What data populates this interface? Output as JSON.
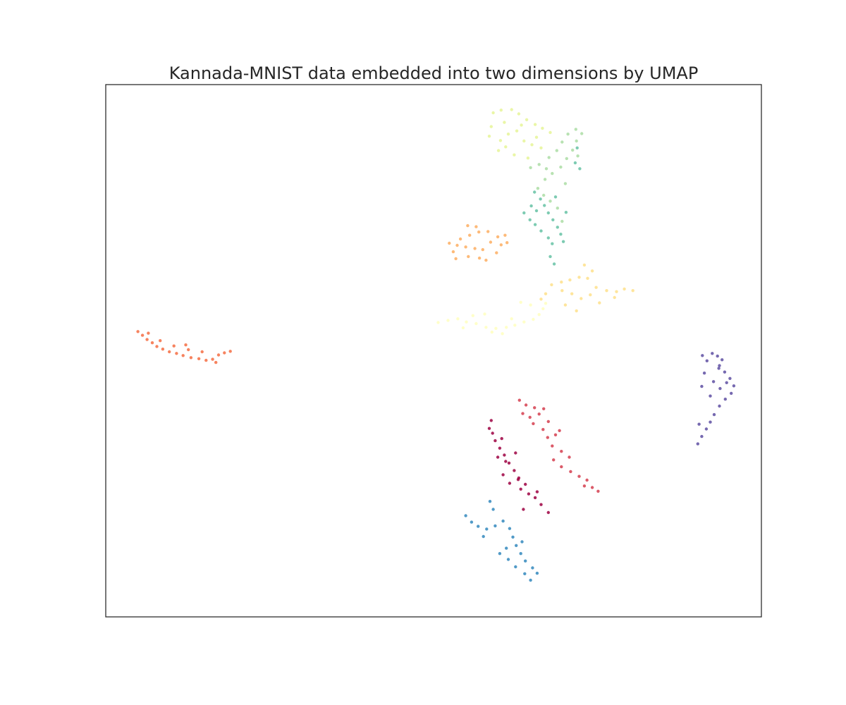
{
  "chart_data": {
    "type": "scatter",
    "title": "Kannada-MNIST data embedded into two dimensions by UMAP",
    "xlabel": "",
    "ylabel": "",
    "xlim": [
      0,
      100
    ],
    "ylim": [
      0,
      100
    ],
    "axis_ticks": false,
    "grid": false,
    "legend": "none",
    "colormap": "Spectral",
    "series": [
      {
        "color": "#9e0142",
        "points": [
          [
            58.5,
            35.4
          ],
          [
            59.0,
            34.5
          ],
          [
            59.4,
            33.1
          ],
          [
            60.1,
            31.7
          ],
          [
            60.8,
            30.4
          ],
          [
            61.5,
            28.9
          ],
          [
            62.3,
            27.5
          ],
          [
            63.0,
            26.1
          ],
          [
            60.6,
            26.7
          ],
          [
            61.6,
            25.1
          ],
          [
            63.3,
            24.0
          ],
          [
            64.5,
            23.1
          ],
          [
            65.5,
            22.4
          ],
          [
            66.4,
            21.1
          ],
          [
            67.5,
            19.6
          ],
          [
            59.8,
            30.0
          ],
          [
            61.0,
            29.2
          ],
          [
            62.5,
            30.8
          ],
          [
            58.8,
            36.9
          ],
          [
            60.4,
            33.5
          ],
          [
            62.9,
            25.8
          ],
          [
            64.0,
            24.9
          ],
          [
            65.8,
            23.5
          ],
          [
            63.7,
            20.2
          ]
        ]
      },
      {
        "color": "#d53e4f",
        "points": [
          [
            63.1,
            40.7
          ],
          [
            64.1,
            39.8
          ],
          [
            65.4,
            39.3
          ],
          [
            66.1,
            38.1
          ],
          [
            64.7,
            37.5
          ],
          [
            65.2,
            36.3
          ],
          [
            66.7,
            35.2
          ],
          [
            67.4,
            33.7
          ],
          [
            68.1,
            32.1
          ],
          [
            69.5,
            31.1
          ],
          [
            68.3,
            29.5
          ],
          [
            69.5,
            28.2
          ],
          [
            70.9,
            27.3
          ],
          [
            72.2,
            26.4
          ],
          [
            73.4,
            25.7
          ],
          [
            74.2,
            24.3
          ],
          [
            75.1,
            23.6
          ],
          [
            73.0,
            24.6
          ],
          [
            70.7,
            30.0
          ],
          [
            67.5,
            36.7
          ],
          [
            68.6,
            34.2
          ],
          [
            63.6,
            38.2
          ],
          [
            66.8,
            39.1
          ],
          [
            69.2,
            35.0
          ]
        ]
      },
      {
        "color": "#f46d43",
        "points": [
          [
            4.9,
            53.6
          ],
          [
            5.6,
            52.9
          ],
          [
            6.3,
            52.1
          ],
          [
            7.1,
            51.5
          ],
          [
            7.8,
            50.8
          ],
          [
            8.7,
            50.3
          ],
          [
            9.7,
            49.8
          ],
          [
            10.8,
            49.5
          ],
          [
            11.8,
            49.1
          ],
          [
            13.0,
            48.7
          ],
          [
            14.2,
            48.5
          ],
          [
            15.3,
            48.2
          ],
          [
            16.3,
            48.4
          ],
          [
            17.2,
            49.2
          ],
          [
            18.1,
            49.6
          ],
          [
            19.0,
            49.9
          ],
          [
            8.3,
            51.9
          ],
          [
            10.4,
            50.9
          ],
          [
            12.6,
            50.2
          ],
          [
            14.7,
            49.8
          ],
          [
            6.5,
            53.3
          ],
          [
            16.8,
            47.8
          ],
          [
            12.2,
            51.1
          ]
        ]
      },
      {
        "color": "#fdae61",
        "points": [
          [
            52.4,
            70.2
          ],
          [
            53.6,
            69.8
          ],
          [
            54.9,
            69.5
          ],
          [
            56.3,
            69.2
          ],
          [
            57.5,
            69.0
          ],
          [
            58.7,
            70.4
          ],
          [
            59.8,
            71.4
          ],
          [
            60.9,
            71.7
          ],
          [
            55.5,
            71.7
          ],
          [
            56.9,
            72.3
          ],
          [
            58.3,
            72.4
          ],
          [
            54.1,
            71.0
          ],
          [
            53.0,
            68.6
          ],
          [
            55.3,
            67.7
          ],
          [
            57.0,
            67.4
          ],
          [
            58.0,
            67.0
          ],
          [
            59.6,
            68.4
          ],
          [
            60.3,
            69.9
          ],
          [
            61.2,
            70.3
          ],
          [
            56.5,
            73.3
          ],
          [
            55.2,
            73.5
          ],
          [
            53.4,
            67.3
          ]
        ]
      },
      {
        "color": "#fee08b",
        "points": [
          [
            68.0,
            62.4
          ],
          [
            69.5,
            62.9
          ],
          [
            70.8,
            63.3
          ],
          [
            72.2,
            63.8
          ],
          [
            73.5,
            63.6
          ],
          [
            74.8,
            61.9
          ],
          [
            76.4,
            61.3
          ],
          [
            77.9,
            61.1
          ],
          [
            79.1,
            61.6
          ],
          [
            80.4,
            61.3
          ],
          [
            71.1,
            60.7
          ],
          [
            72.5,
            59.8
          ],
          [
            73.9,
            60.5
          ],
          [
            75.3,
            59.0
          ],
          [
            70.1,
            58.6
          ],
          [
            71.8,
            57.5
          ],
          [
            69.6,
            61.3
          ],
          [
            67.1,
            60.7
          ],
          [
            66.4,
            59.7
          ],
          [
            74.2,
            65.0
          ],
          [
            73.0,
            66.1
          ],
          [
            77.6,
            60.0
          ]
        ]
      },
      {
        "color": "#ffffbf",
        "points": [
          [
            50.7,
            55.3
          ],
          [
            52.2,
            55.7
          ],
          [
            53.7,
            56.0
          ],
          [
            55.0,
            55.4
          ],
          [
            56.5,
            55.1
          ],
          [
            58.0,
            54.4
          ],
          [
            59.5,
            54.2
          ],
          [
            61.1,
            54.4
          ],
          [
            62.4,
            54.8
          ],
          [
            63.8,
            55.4
          ],
          [
            65.2,
            55.9
          ],
          [
            66.1,
            56.8
          ],
          [
            66.7,
            57.9
          ],
          [
            67.1,
            58.9
          ],
          [
            58.9,
            53.5
          ],
          [
            60.5,
            53.2
          ],
          [
            56.0,
            56.6
          ],
          [
            57.8,
            56.9
          ],
          [
            54.5,
            54.3
          ],
          [
            61.9,
            56.0
          ],
          [
            63.3,
            59.1
          ],
          [
            64.8,
            58.6
          ]
        ]
      },
      {
        "color": "#e6f598",
        "points": [
          [
            59.1,
            94.7
          ],
          [
            60.3,
            95.2
          ],
          [
            61.9,
            95.3
          ],
          [
            63.0,
            94.5
          ],
          [
            64.2,
            93.4
          ],
          [
            65.5,
            92.5
          ],
          [
            66.6,
            91.8
          ],
          [
            67.8,
            91.0
          ],
          [
            58.8,
            92.1
          ],
          [
            58.5,
            90.3
          ],
          [
            60.2,
            89.5
          ],
          [
            61.4,
            90.7
          ],
          [
            62.7,
            91.3
          ],
          [
            63.8,
            89.4
          ],
          [
            65.0,
            88.7
          ],
          [
            66.4,
            88.1
          ],
          [
            60.8,
            92.9
          ],
          [
            63.4,
            92.4
          ],
          [
            59.9,
            87.6
          ],
          [
            62.3,
            86.8
          ],
          [
            64.4,
            86.2
          ],
          [
            65.7,
            90.1
          ],
          [
            61.0,
            88.3
          ]
        ]
      },
      {
        "color": "#abdda4",
        "points": [
          [
            64.8,
            84.4
          ],
          [
            66.1,
            85.0
          ],
          [
            67.6,
            86.3
          ],
          [
            68.8,
            87.6
          ],
          [
            69.6,
            89.2
          ],
          [
            70.5,
            90.7
          ],
          [
            71.7,
            91.6
          ],
          [
            72.6,
            90.8
          ],
          [
            71.8,
            89.4
          ],
          [
            71.2,
            87.7
          ],
          [
            70.3,
            86.1
          ],
          [
            69.4,
            84.5
          ],
          [
            68.1,
            83.3
          ],
          [
            67.0,
            82.2
          ],
          [
            65.9,
            80.5
          ],
          [
            66.8,
            79.2
          ],
          [
            67.8,
            78.1
          ],
          [
            68.9,
            76.8
          ],
          [
            69.6,
            74.3
          ],
          [
            70.1,
            81.4
          ],
          [
            72.0,
            86.6
          ],
          [
            67.2,
            84.2
          ]
        ]
      },
      {
        "color": "#66c2a5",
        "points": [
          [
            65.4,
            79.8
          ],
          [
            66.3,
            78.5
          ],
          [
            66.9,
            77.3
          ],
          [
            67.5,
            75.9
          ],
          [
            68.2,
            74.6
          ],
          [
            68.9,
            73.2
          ],
          [
            69.4,
            71.9
          ],
          [
            69.8,
            70.5
          ],
          [
            68.1,
            70.1
          ],
          [
            67.5,
            71.2
          ],
          [
            66.4,
            72.5
          ],
          [
            65.5,
            73.7
          ],
          [
            64.7,
            74.6
          ],
          [
            63.8,
            75.9
          ],
          [
            64.9,
            77.2
          ],
          [
            65.7,
            76.3
          ],
          [
            68.6,
            78.9
          ],
          [
            70.2,
            76.0
          ],
          [
            71.6,
            85.3
          ],
          [
            72.3,
            84.2
          ],
          [
            71.9,
            88.1
          ],
          [
            67.8,
            67.7
          ],
          [
            68.4,
            66.3
          ]
        ]
      },
      {
        "color": "#3288bd",
        "points": [
          [
            54.9,
            19.0
          ],
          [
            55.8,
            17.8
          ],
          [
            56.8,
            17.0
          ],
          [
            58.1,
            16.5
          ],
          [
            59.4,
            17.1
          ],
          [
            60.6,
            18.0
          ],
          [
            61.6,
            16.6
          ],
          [
            62.1,
            15.0
          ],
          [
            62.6,
            13.4
          ],
          [
            63.3,
            11.9
          ],
          [
            64.0,
            10.5
          ],
          [
            65.1,
            9.2
          ],
          [
            60.1,
            11.9
          ],
          [
            61.4,
            10.8
          ],
          [
            62.5,
            9.4
          ],
          [
            63.9,
            8.1
          ],
          [
            64.8,
            6.9
          ],
          [
            59.1,
            20.2
          ],
          [
            58.6,
            21.7
          ],
          [
            63.5,
            14.1
          ],
          [
            61.1,
            12.9
          ],
          [
            57.6,
            15.1
          ],
          [
            65.8,
            8.2
          ]
        ]
      },
      {
        "color": "#5e4fa2",
        "points": [
          [
            91.0,
            49.1
          ],
          [
            91.7,
            48.1
          ],
          [
            92.5,
            49.5
          ],
          [
            93.3,
            49.0
          ],
          [
            94.0,
            48.3
          ],
          [
            93.6,
            47.2
          ],
          [
            94.4,
            46.0
          ],
          [
            95.2,
            44.8
          ],
          [
            95.8,
            43.4
          ],
          [
            95.4,
            42.0
          ],
          [
            94.5,
            40.9
          ],
          [
            93.6,
            39.6
          ],
          [
            92.8,
            38.0
          ],
          [
            92.2,
            36.6
          ],
          [
            91.6,
            35.3
          ],
          [
            90.9,
            33.9
          ],
          [
            90.3,
            32.5
          ],
          [
            91.3,
            45.8
          ],
          [
            90.9,
            43.3
          ],
          [
            92.7,
            44.2
          ],
          [
            93.7,
            42.9
          ],
          [
            92.2,
            41.5
          ],
          [
            93.5,
            46.7
          ],
          [
            94.7,
            44.0
          ],
          [
            90.5,
            36.2
          ]
        ]
      }
    ]
  }
}
